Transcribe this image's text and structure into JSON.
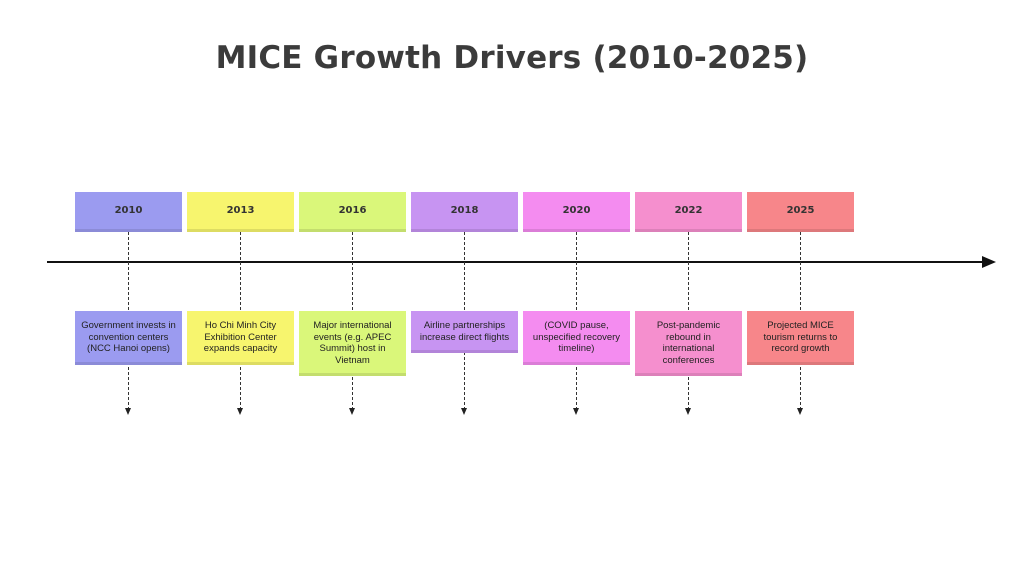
{
  "title": "MICE Growth Drivers (2010-2025)",
  "events": [
    {
      "year": "2010",
      "description": "Government invests in convention centers (NCC Hanoi opens)",
      "color": "#9b9bf0"
    },
    {
      "year": "2013",
      "description": "Ho Chi Minh City Exhibition Center expands capacity",
      "color": "#f7f56e"
    },
    {
      "year": "2016",
      "description": "Major international events (e.g. APEC Summit) host in Vietnam",
      "color": "#daf77a"
    },
    {
      "year": "2018",
      "description": "Airline partnerships increase direct flights",
      "color": "#c794f2"
    },
    {
      "year": "2020",
      "description": "(COVID pause, unspecified recovery timeline)",
      "color": "#f48cf0"
    },
    {
      "year": "2022",
      "description": "Post-pandemic rebound in international conferences",
      "color": "#f58fce"
    },
    {
      "year": "2025",
      "description": "Projected MICE tourism returns to record growth",
      "color": "#f7868a"
    }
  ]
}
